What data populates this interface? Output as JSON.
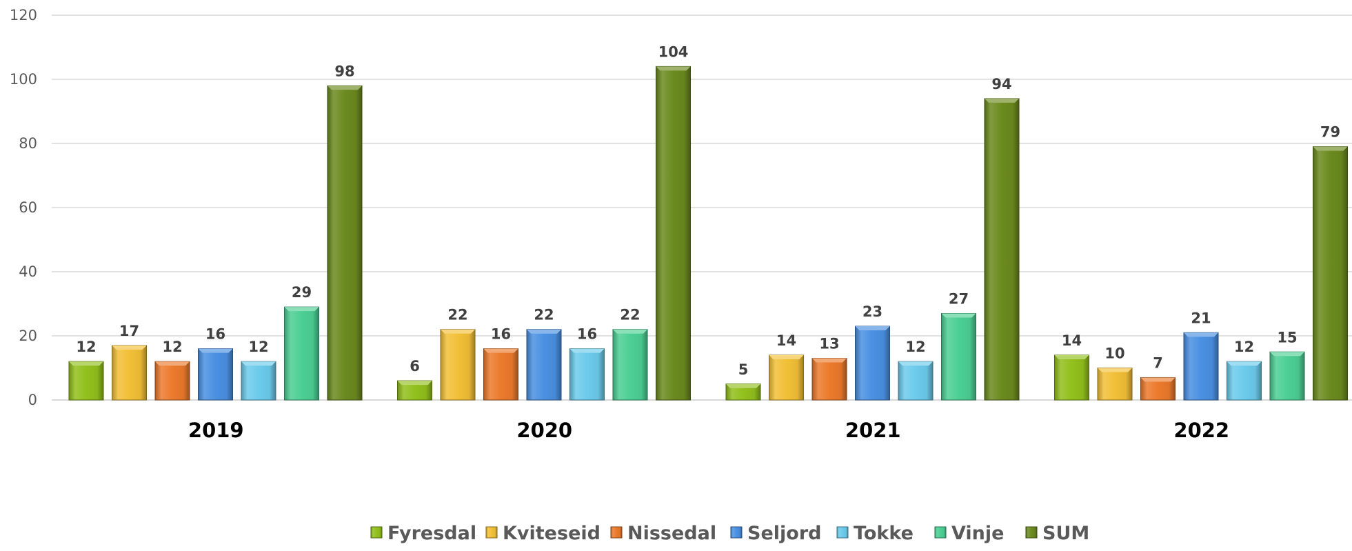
{
  "chart_data": {
    "type": "bar",
    "categories": [
      "2019",
      "2020",
      "2021",
      "2022"
    ],
    "series": [
      {
        "name": "Fyresdal",
        "values": [
          12,
          6,
          5,
          14
        ],
        "color": "#92c01c"
      },
      {
        "name": "Kviteseid",
        "values": [
          17,
          22,
          14,
          10
        ],
        "color": "#f2c037"
      },
      {
        "name": "Nissedal",
        "values": [
          12,
          16,
          13,
          7
        ],
        "color": "#ec7a2c"
      },
      {
        "name": "Seljord",
        "values": [
          16,
          22,
          23,
          21
        ],
        "color": "#4a90e2"
      },
      {
        "name": "Tokke",
        "values": [
          12,
          16,
          12,
          12
        ],
        "color": "#6ccbec"
      },
      {
        "name": "Vinje",
        "values": [
          29,
          22,
          27,
          15
        ],
        "color": "#4ccf94"
      },
      {
        "name": "SUM",
        "values": [
          98,
          104,
          94,
          79
        ],
        "color": "#6b8a1e"
      }
    ],
    "yticks": [
      0,
      20,
      40,
      60,
      80,
      100,
      120
    ],
    "ylim": [
      0,
      120
    ],
    "grid": true,
    "legend_position": "bottom"
  }
}
